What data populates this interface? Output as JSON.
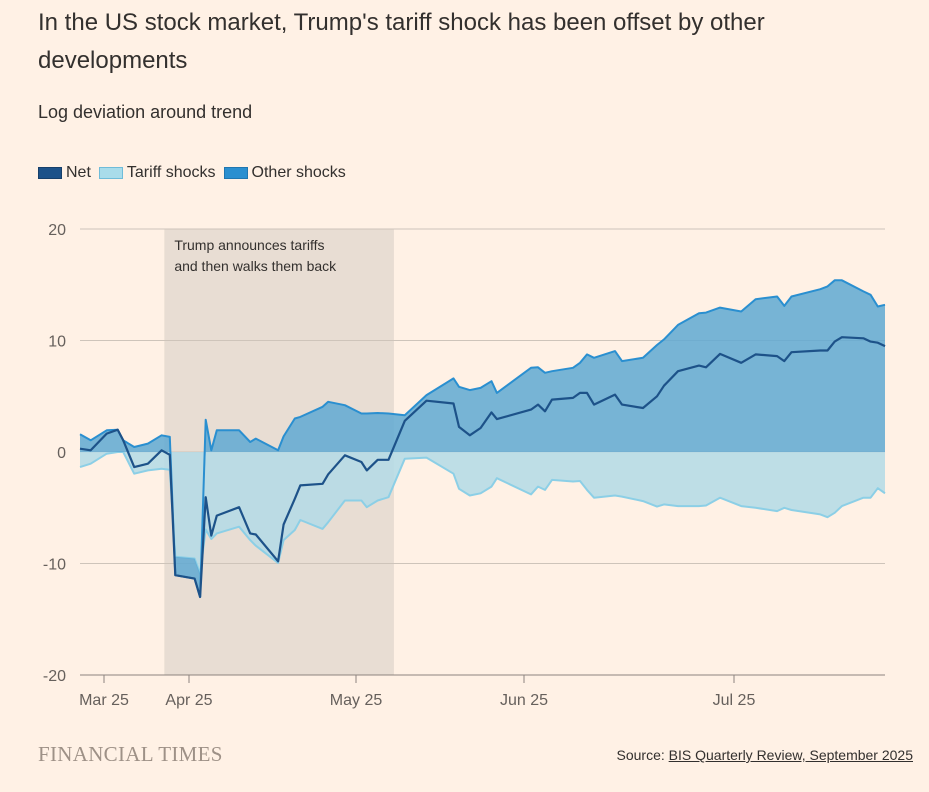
{
  "title": "In the US stock market, Trump's tariff shock has been offset by other developments",
  "subtitle": "Log deviation around trend",
  "footer": {
    "brand": "FINANCIAL TIMES",
    "source_prefix": "Source: ",
    "source_link": "BIS Quarterly Review, September 2025"
  },
  "chart_data": {
    "type": "area",
    "title": "In the US stock market, Trump's tariff shock has been offset by other developments",
    "ylabel": "Log deviation around trend",
    "ylim": [
      -20,
      20
    ],
    "yticks": [
      20,
      10,
      0,
      -10,
      -20
    ],
    "xlim": [
      "2025-02-20",
      "2025-07-22"
    ],
    "xticks": [
      {
        "date": "2025-03-01",
        "label": "Mar 25"
      },
      {
        "date": "2025-04-01",
        "label": "Apr 25"
      },
      {
        "date": "2025-05-01",
        "label": "May 25"
      },
      {
        "date": "2025-06-01",
        "label": "Jun 25"
      },
      {
        "date": "2025-07-01",
        "label": "Jul 25"
      }
    ],
    "grid": true,
    "legend_position": "top-left",
    "annotation": {
      "text_lines": [
        "Trump announces tariffs",
        "and then walks them back"
      ],
      "x_start": "2025-03-23",
      "x_end": "2025-05-08"
    },
    "x": [
      "2025-02-20",
      "2025-02-24",
      "2025-03-02",
      "2025-03-06",
      "2025-03-08",
      "2025-03-12",
      "2025-03-17",
      "2025-03-22",
      "2025-03-25",
      "2025-03-27",
      "2025-04-02",
      "2025-04-03",
      "2025-04-04",
      "2025-04-05",
      "2025-04-06",
      "2025-04-10",
      "2025-04-12",
      "2025-04-13",
      "2025-04-17",
      "2025-04-18",
      "2025-04-20",
      "2025-04-21",
      "2025-04-25",
      "2025-04-26",
      "2025-04-29",
      "2025-05-02",
      "2025-05-03",
      "2025-05-05",
      "2025-05-07",
      "2025-05-10",
      "2025-05-14",
      "2025-05-19",
      "2025-05-20",
      "2025-05-22",
      "2025-05-24",
      "2025-05-26",
      "2025-05-27",
      "2025-06-02",
      "2025-06-03",
      "2025-06-04",
      "2025-06-05",
      "2025-06-08",
      "2025-06-09",
      "2025-06-10",
      "2025-06-11",
      "2025-06-14",
      "2025-06-15",
      "2025-06-18",
      "2025-06-20",
      "2025-06-21",
      "2025-06-23",
      "2025-06-26",
      "2025-06-27",
      "2025-06-29",
      "2025-07-02",
      "2025-07-04",
      "2025-07-07",
      "2025-07-08",
      "2025-07-09",
      "2025-07-13",
      "2025-07-14",
      "2025-07-15",
      "2025-07-16",
      "2025-07-19",
      "2025-07-20",
      "2025-07-21",
      "2025-07-22"
    ],
    "series": [
      {
        "name": "Net",
        "kind": "line",
        "color": "#1d5289",
        "values": [
          0.3,
          0.15,
          1.65,
          2.0,
          1.05,
          -1.35,
          -1.05,
          0.15,
          -0.25,
          -11.05,
          -11.35,
          -13.0,
          -4.05,
          -7.5,
          -5.7,
          -4.95,
          -7.3,
          -7.4,
          -9.8,
          -6.5,
          -4.2,
          -3.0,
          -2.85,
          -2.0,
          -0.3,
          -0.9,
          -1.65,
          -0.7,
          -0.7,
          2.8,
          4.6,
          4.35,
          2.25,
          1.5,
          2.15,
          3.55,
          2.95,
          3.8,
          4.25,
          3.65,
          4.7,
          4.85,
          5.3,
          5.3,
          4.25,
          5.15,
          4.25,
          3.95,
          5.0,
          5.95,
          7.25,
          7.75,
          7.6,
          8.8,
          8.0,
          8.75,
          8.6,
          8.15,
          8.95,
          9.1,
          9.1,
          9.9,
          10.3,
          10.2,
          9.9,
          9.8,
          9.5
        ]
      },
      {
        "name": "Tariff shocks",
        "kind": "area",
        "color": "#8ccfe6",
        "fill": "#b3dbe6",
        "values": [
          -1.35,
          -1.05,
          -0.15,
          0.0,
          0.0,
          -1.95,
          -1.65,
          -1.5,
          -1.6,
          -9.4,
          -9.55,
          -10.9,
          -6.95,
          -7.8,
          -7.3,
          -6.7,
          -7.9,
          -8.4,
          -9.95,
          -7.9,
          -7.0,
          -6.1,
          -6.9,
          -6.3,
          -4.35,
          -4.35,
          -4.95,
          -4.35,
          -4.05,
          -0.6,
          -0.5,
          -1.95,
          -3.3,
          -3.9,
          -3.7,
          -3.1,
          -2.35,
          -3.8,
          -3.1,
          -3.4,
          -2.5,
          -2.65,
          -2.6,
          -3.4,
          -4.1,
          -3.9,
          -4.0,
          -4.4,
          -4.9,
          -4.7,
          -4.85,
          -4.85,
          -4.8,
          -4.1,
          -4.85,
          -5.0,
          -5.3,
          -5.0,
          -5.2,
          -5.6,
          -5.85,
          -5.45,
          -4.85,
          -4.1,
          -4.1,
          -3.25,
          -3.7
        ]
      },
      {
        "name": "Other shocks",
        "kind": "area",
        "color": "#2a8fd0",
        "fill": "#5fa9d2",
        "values": [
          1.6,
          1.05,
          1.95,
          2.0,
          1.05,
          0.45,
          0.75,
          1.5,
          1.35,
          -1.65,
          -1.8,
          -2.1,
          2.9,
          0.15,
          1.95,
          1.95,
          0.9,
          1.2,
          0.15,
          1.4,
          3.0,
          3.15,
          4.05,
          4.5,
          4.2,
          3.45,
          3.45,
          3.5,
          3.45,
          3.3,
          5.1,
          6.6,
          5.85,
          5.55,
          5.75,
          6.35,
          5.3,
          7.55,
          7.6,
          7.1,
          7.25,
          7.55,
          8.0,
          8.75,
          8.45,
          9.05,
          8.15,
          8.45,
          9.6,
          10.1,
          11.4,
          12.45,
          12.5,
          12.95,
          12.6,
          13.7,
          13.95,
          13.1,
          13.95,
          14.6,
          14.85,
          15.4,
          15.4,
          14.4,
          14.1,
          13.05,
          13.2
        ]
      }
    ]
  }
}
